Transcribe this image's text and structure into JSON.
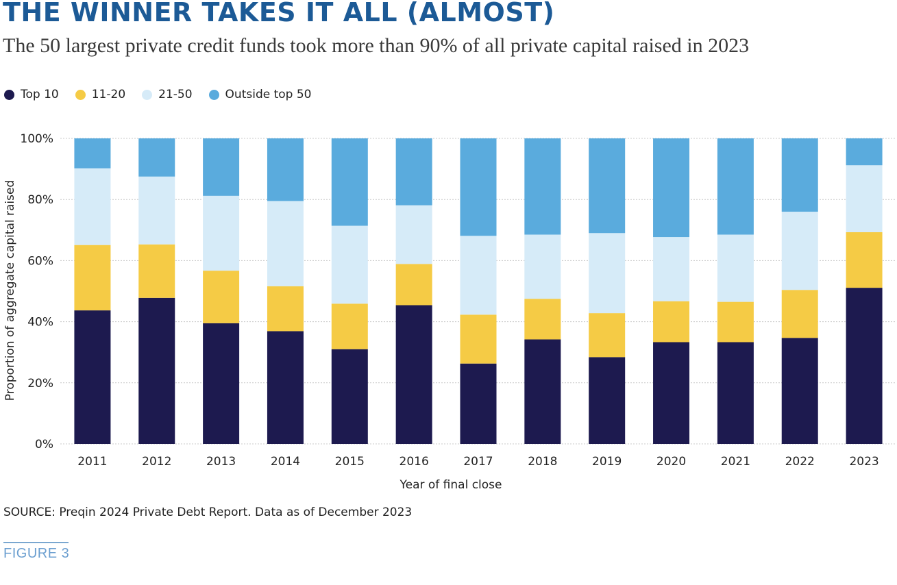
{
  "title": "THE WINNER TAKES IT ALL (ALMOST)",
  "subtitle": "The 50 largest private credit funds took more than 90% of all private capital raised in 2023",
  "legend": [
    {
      "label": "Top 10",
      "color": "#1d1a4f"
    },
    {
      "label": "11-20",
      "color": "#f5cb45"
    },
    {
      "label": "21-50",
      "color": "#d6ebf8"
    },
    {
      "label": "Outside top 50",
      "color": "#5aabdd"
    }
  ],
  "chart_data": {
    "type": "bar",
    "stacked": true,
    "categories": [
      "2011",
      "2012",
      "2013",
      "2014",
      "2015",
      "2016",
      "2017",
      "2018",
      "2019",
      "2020",
      "2021",
      "2022",
      "2023"
    ],
    "series": [
      {
        "name": "Top 10",
        "color": "#1d1a4f",
        "values": [
          43.7,
          47.8,
          39.5,
          36.9,
          31.0,
          45.4,
          26.3,
          34.2,
          28.4,
          33.3,
          33.3,
          34.7,
          51.1
        ]
      },
      {
        "name": "11-20",
        "color": "#f5cb45",
        "values": [
          21.4,
          17.5,
          17.2,
          14.7,
          14.9,
          13.5,
          16.0,
          13.3,
          14.4,
          13.4,
          13.2,
          15.7,
          18.2
        ]
      },
      {
        "name": "21-50",
        "color": "#d6ebf8",
        "values": [
          25.1,
          22.2,
          24.5,
          27.9,
          25.5,
          19.2,
          25.8,
          21.0,
          26.2,
          21.0,
          22.0,
          25.6,
          21.9
        ]
      },
      {
        "name": "Outside top 50",
        "color": "#5aabdd",
        "values": [
          9.8,
          12.5,
          18.8,
          20.5,
          28.6,
          21.9,
          31.9,
          31.5,
          31.0,
          32.3,
          31.5,
          24.0,
          8.8
        ]
      }
    ],
    "ylim": [
      0,
      100
    ],
    "yticks": [
      "0%",
      "20%",
      "40%",
      "60%",
      "80%",
      "100%"
    ],
    "ytick_values": [
      0,
      20,
      40,
      60,
      80,
      100
    ],
    "xlabel": "Year of final close",
    "ylabel": "Proportion of aggregate capital raised",
    "grid": true,
    "legend_position": "top-left"
  },
  "source": "SOURCE: Preqin 2024 Private Debt Report. Data as of December 2023",
  "figure_label": "FIGURE 3"
}
